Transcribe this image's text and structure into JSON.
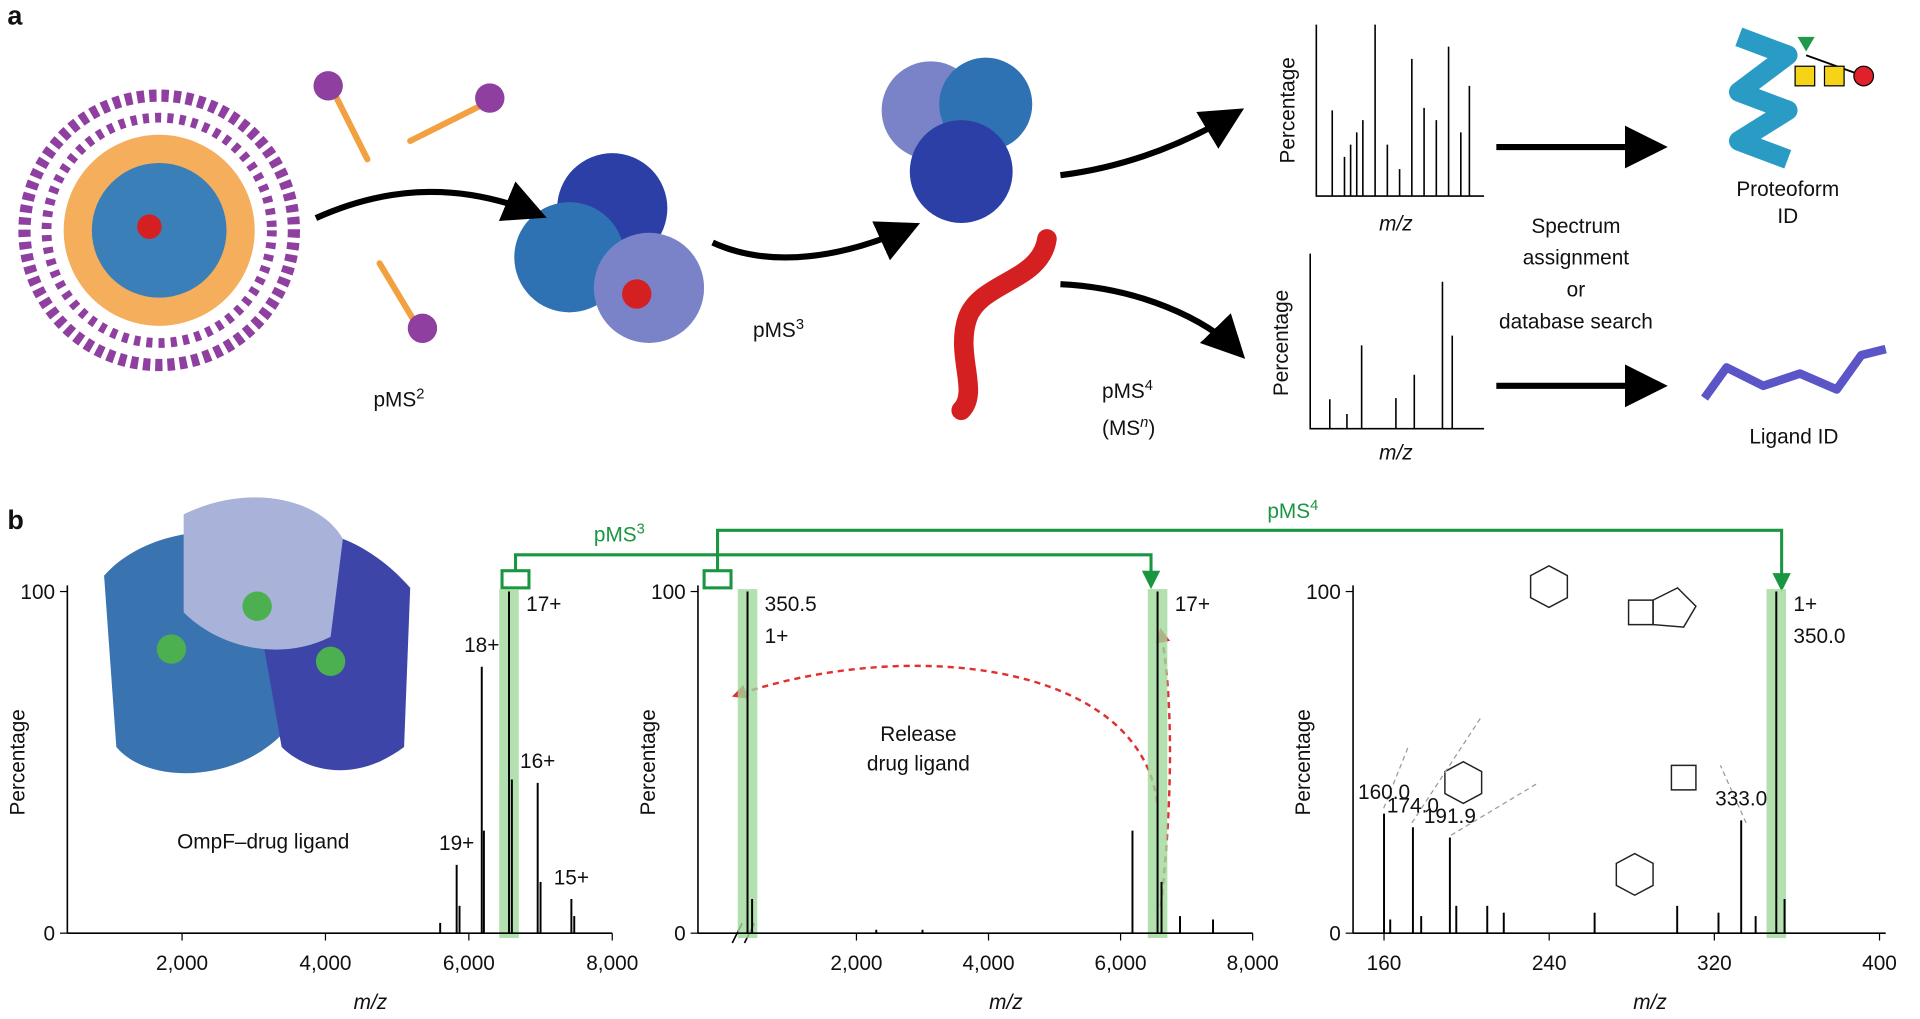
{
  "panel_a": {
    "label": "a",
    "steps": [
      {
        "base": "pMS",
        "sup": "2"
      },
      {
        "base": "pMS",
        "sup": "3"
      },
      {
        "base": "pMS",
        "sup": "4"
      }
    ],
    "msn": {
      "open": "(MS",
      "sup": "n",
      "close": ")"
    },
    "spectra": [
      {
        "ylabel": "Percentage",
        "xlabel": "m/z"
      },
      {
        "ylabel": "Percentage",
        "xlabel": "m/z"
      }
    ],
    "search_text": [
      "Spectrum",
      "assignment",
      "or",
      "database search"
    ],
    "outputs": [
      [
        "Proteoform",
        "ID"
      ],
      [
        "Ligand ID"
      ]
    ]
  },
  "panel_b": {
    "label": "b",
    "inset_label": "OmpF–drug ligand",
    "release_label": [
      "Release",
      "drug ligand"
    ],
    "transitions": [
      {
        "base": "pMS",
        "sup": "3"
      },
      {
        "base": "pMS",
        "sup": "4"
      }
    ]
  },
  "chart_data": [
    {
      "type": "stick",
      "xlabel": "m/z",
      "ylabel": "Percentage",
      "color": "#000000",
      "xlim": [
        400,
        8000
      ],
      "xticks": [
        {
          "value": 2000,
          "label": "2,000"
        },
        {
          "value": 4000,
          "label": "4,000"
        },
        {
          "value": 6000,
          "label": "6,000"
        },
        {
          "value": 8000,
          "label": "8,000"
        }
      ],
      "ylim": [
        0,
        100
      ],
      "yticks": [
        0,
        100
      ],
      "x": [
        5600,
        5830,
        5870,
        6180,
        6210,
        6560,
        6600,
        6960,
        7000,
        7430,
        7470
      ],
      "values": [
        3,
        20,
        8,
        78,
        30,
        100,
        45,
        44,
        15,
        10,
        5
      ],
      "labels": [
        null,
        "19+",
        null,
        "18+",
        null,
        "17+",
        null,
        "16+",
        null,
        "15+",
        null
      ],
      "label_colors": [
        null,
        null,
        null,
        null,
        null,
        null,
        null,
        null,
        null,
        null,
        null
      ],
      "highlight_x": [
        6560
      ],
      "highlight_color": "#9fd89a"
    },
    {
      "type": "stick",
      "xlabel": "m/z",
      "ylabel": "Percentage",
      "color": "#000000",
      "xlim": [
        -400,
        8000
      ],
      "xticks": [
        {
          "value": 2000,
          "label": "2,000"
        },
        {
          "value": 4000,
          "label": "4,000"
        },
        {
          "value": 6000,
          "label": "6,000"
        },
        {
          "value": 8000,
          "label": "8,000"
        }
      ],
      "ylim": [
        0,
        100
      ],
      "yticks": [
        0,
        100
      ],
      "x": [
        350.5,
        420,
        2300,
        3000,
        6180,
        6560,
        6620,
        6900,
        7400
      ],
      "values": [
        100,
        10,
        1,
        1,
        30,
        100,
        15,
        5,
        4
      ],
      "labels": [
        [
          "350.5",
          "1+"
        ],
        null,
        null,
        null,
        null,
        "17+",
        null,
        null,
        null
      ],
      "label_colors": [
        "#1a9641",
        null,
        null,
        null,
        null,
        null,
        null,
        null,
        null
      ],
      "highlight_x": [
        350.5,
        6560
      ],
      "highlight_color": "#9fd89a"
    },
    {
      "type": "stick",
      "xlabel": "m/z",
      "ylabel": "Percentage",
      "color": "#000000",
      "xlim": [
        145,
        403
      ],
      "xticks": [
        160,
        240,
        320,
        400
      ],
      "ylim": [
        0,
        100
      ],
      "yticks": [
        0,
        100
      ],
      "x": [
        160,
        163,
        174,
        178,
        191.9,
        195,
        210,
        218,
        262,
        302,
        322,
        333,
        340,
        350,
        354
      ],
      "values": [
        35,
        4,
        31,
        5,
        28,
        8,
        8,
        6,
        6,
        8,
        6,
        33,
        5,
        100,
        10
      ],
      "labels": [
        "160.0",
        null,
        "174.0",
        null,
        "191.9",
        null,
        null,
        null,
        null,
        null,
        null,
        "333.0",
        null,
        [
          "1+",
          "350.0"
        ],
        null
      ],
      "label_colors": [
        null,
        null,
        null,
        null,
        null,
        null,
        null,
        null,
        null,
        null,
        null,
        null,
        null,
        "#1a9641",
        null
      ],
      "highlight_x": [
        350
      ],
      "highlight_color": "#9fd89a"
    }
  ]
}
